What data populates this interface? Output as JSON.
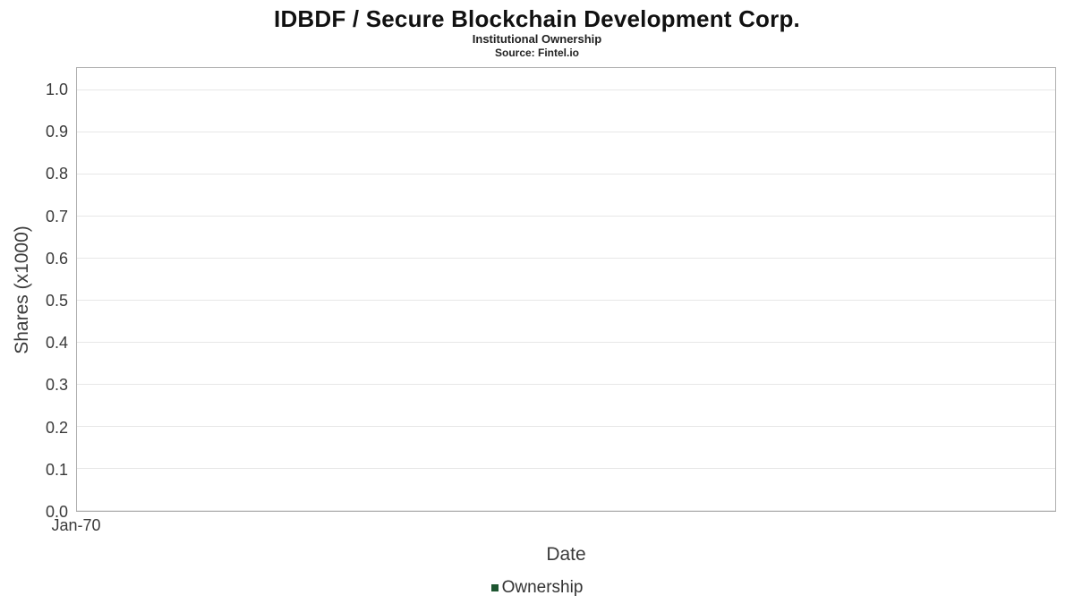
{
  "chart_data": {
    "type": "line",
    "title": "IDBDF / Secure Blockchain Development Corp.",
    "subtitle": "Institutional Ownership",
    "source": "Source: Fintel.io",
    "xlabel": "Date",
    "ylabel": "Shares (x1000)",
    "xticks": [
      "Jan-70"
    ],
    "yticks": [
      "0.0",
      "0.1",
      "0.2",
      "0.3",
      "0.4",
      "0.5",
      "0.6",
      "0.7",
      "0.8",
      "0.9",
      "1.0"
    ],
    "ylim": [
      0,
      1.053
    ],
    "grid": true,
    "legend_position": "bottom",
    "series": [
      {
        "name": "Ownership",
        "color": "#1e5631",
        "x": [],
        "values": []
      }
    ],
    "colors": {
      "gridline": "#e7e7e7",
      "plot_border": "#b0b0b0",
      "text": "#3a3a3a",
      "title_text": "#111111"
    }
  }
}
